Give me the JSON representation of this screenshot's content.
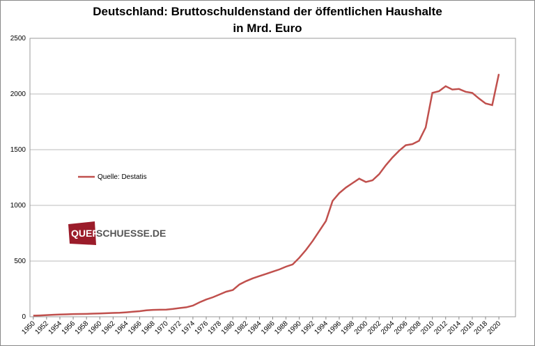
{
  "chart_data": {
    "type": "line",
    "title": "Deutschland: Bruttoschuldenstand  der öffentlichen Haushalte",
    "subtitle": "in Mrd. Euro",
    "x": [
      1950,
      1951,
      1952,
      1953,
      1954,
      1955,
      1956,
      1957,
      1958,
      1959,
      1960,
      1961,
      1962,
      1963,
      1964,
      1965,
      1966,
      1967,
      1968,
      1969,
      1970,
      1971,
      1972,
      1973,
      1974,
      1975,
      1976,
      1977,
      1978,
      1979,
      1980,
      1981,
      1982,
      1983,
      1984,
      1985,
      1986,
      1987,
      1988,
      1989,
      1990,
      1991,
      1992,
      1993,
      1994,
      1995,
      1996,
      1997,
      1998,
      1999,
      2000,
      2001,
      2002,
      2003,
      2004,
      2005,
      2006,
      2007,
      2008,
      2009,
      2010,
      2011,
      2012,
      2013,
      2014,
      2015,
      2016,
      2017,
      2018,
      2019,
      2020
    ],
    "series": [
      {
        "name": "Quelle: Destatis",
        "color": "#c0504d",
        "values": [
          10,
          12,
          15,
          18,
          20,
          22,
          24,
          25,
          26,
          28,
          30,
          32,
          34,
          36,
          40,
          45,
          50,
          58,
          62,
          63,
          64,
          70,
          78,
          85,
          100,
          130,
          155,
          175,
          200,
          225,
          240,
          290,
          320,
          345,
          365,
          385,
          405,
          425,
          450,
          470,
          530,
          600,
          680,
          770,
          860,
          1040,
          1110,
          1160,
          1200,
          1240,
          1210,
          1225,
          1280,
          1360,
          1430,
          1490,
          1540,
          1550,
          1580,
          1700,
          2010,
          2025,
          2070,
          2040,
          2045,
          2020,
          2010,
          1960,
          1915,
          1900,
          2180
        ]
      }
    ],
    "xlim": [
      1949.5,
      2022.5
    ],
    "xticks": [
      1950,
      1952,
      1954,
      1956,
      1958,
      1960,
      1962,
      1964,
      1966,
      1968,
      1970,
      1972,
      1974,
      1976,
      1978,
      1980,
      1982,
      1984,
      1986,
      1988,
      1990,
      1992,
      1994,
      1996,
      1998,
      2000,
      2002,
      2004,
      2006,
      2008,
      2010,
      2012,
      2014,
      2016,
      2018,
      2020
    ],
    "ylim": [
      0,
      2500
    ],
    "yticks": [
      0,
      500,
      1000,
      1500,
      2000,
      2500
    ],
    "grid": true,
    "logo": {
      "first": "QUER",
      "second": "SCHUESSE.DE"
    }
  }
}
